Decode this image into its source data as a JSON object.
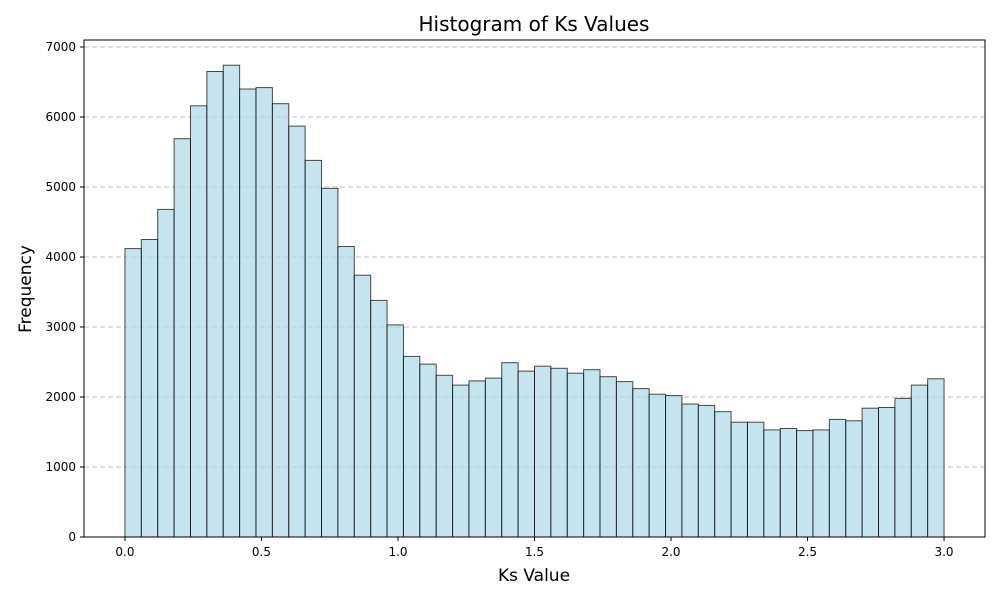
{
  "chart_data": {
    "type": "bar",
    "title": "Histogram of Ks Values",
    "xlabel": "Ks Value",
    "ylabel": "Frequency",
    "xlim": [
      -0.15,
      3.15
    ],
    "ylim": [
      0,
      7100
    ],
    "bin_width": 0.06,
    "bin_start": 0.0,
    "xticks": [
      0.0,
      0.5,
      1.0,
      1.5,
      2.0,
      2.5,
      3.0
    ],
    "xtick_labels": [
      "0.0",
      "0.5",
      "1.0",
      "1.5",
      "2.0",
      "2.5",
      "3.0"
    ],
    "yticks": [
      0,
      1000,
      2000,
      3000,
      4000,
      5000,
      6000,
      7000
    ],
    "ytick_labels": [
      "0",
      "1000",
      "2000",
      "3000",
      "4000",
      "5000",
      "6000",
      "7000"
    ],
    "grid": "y-dashed",
    "bar_color": "#add8e6",
    "edge_color": "#000000",
    "values": [
      4120,
      4250,
      4680,
      5690,
      6160,
      6650,
      6740,
      6400,
      6420,
      6190,
      5870,
      5380,
      4980,
      4150,
      3740,
      3380,
      3030,
      2580,
      2470,
      2310,
      2170,
      2230,
      2270,
      2490,
      2370,
      2440,
      2410,
      2340,
      2390,
      2290,
      2220,
      2120,
      2040,
      2020,
      1900,
      1880,
      1790,
      1640,
      1640,
      1530,
      1550,
      1520,
      1530,
      1680,
      1660,
      1840,
      1850,
      1980,
      2170,
      2260
    ]
  }
}
